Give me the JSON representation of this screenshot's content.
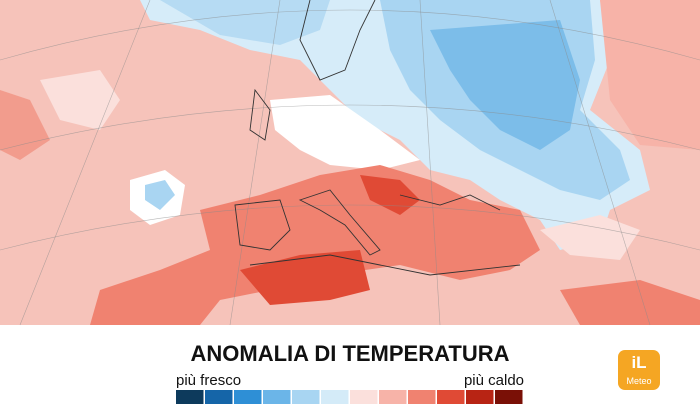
{
  "legend": {
    "title": "ANOMALIA DI TEMPERATURA",
    "low_label": "più fresco",
    "high_label": "più caldo",
    "colors": [
      "#0d3a5c",
      "#1565a8",
      "#2e8fd6",
      "#6bb5e8",
      "#a8d5f2",
      "#d4ebf8",
      "#fbe0dc",
      "#f7b3a8",
      "#f08270",
      "#e04a35",
      "#b82414",
      "#7a1006"
    ]
  },
  "logo": {
    "mark": "iL",
    "name": "Meteo"
  }
}
